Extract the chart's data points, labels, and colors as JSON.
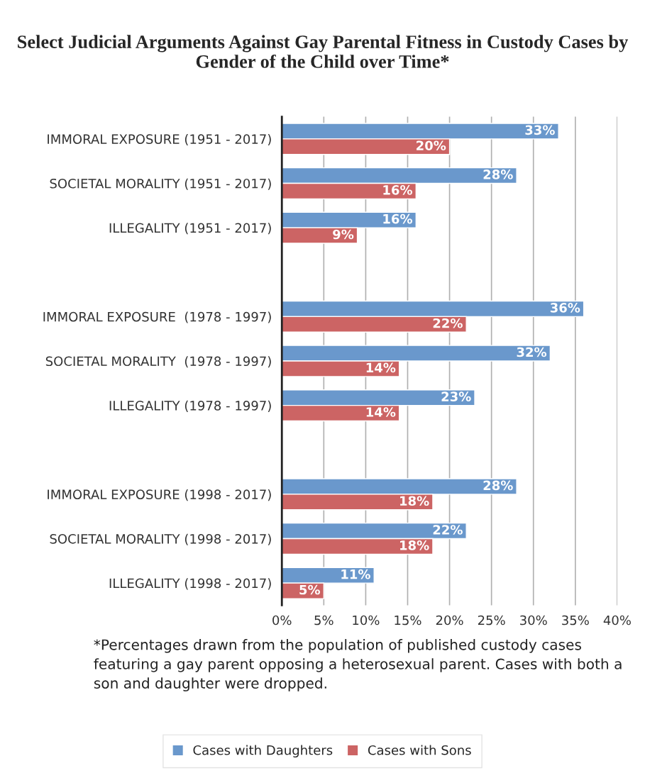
{
  "chart_data": {
    "type": "bar",
    "orientation": "horizontal",
    "title": "Select Judicial Arguments Against Gay Parental Fitness in Custody Cases by Gender of the Child over Time*",
    "categories": [
      "IMMORAL EXPOSURE (1951 - 2017)",
      "SOCIETAL MORALITY (1951 - 2017)",
      "ILLEGALITY (1951 - 2017)",
      null,
      "IMMORAL EXPOSURE  (1978 - 1997)",
      "SOCIETAL MORALITY  (1978 - 1997)",
      "ILLEGALITY (1978 - 1997)",
      null,
      "IMMORAL EXPOSURE (1998 - 2017)",
      "SOCIETAL MORALITY (1998 - 2017)",
      "ILLEGALITY (1998 - 2017)"
    ],
    "series": [
      {
        "name": "Cases with Daughters",
        "color": "#6a98cc",
        "values": [
          33,
          28,
          16,
          null,
          36,
          32,
          23,
          null,
          28,
          22,
          11
        ],
        "value_labels": [
          "33%",
          "28%",
          "16%",
          null,
          "36%",
          "32%",
          "23%",
          null,
          "28%",
          "22%",
          "11%"
        ]
      },
      {
        "name": "Cases with Sons",
        "color": "#cc6464",
        "values": [
          20,
          16,
          9,
          null,
          22,
          14,
          14,
          null,
          18,
          18,
          5
        ],
        "value_labels": [
          "20%",
          "16%",
          "9%",
          null,
          "22%",
          "14%",
          "14%",
          null,
          "18%",
          "18%",
          "5%"
        ]
      }
    ],
    "xlim": [
      0,
      40
    ],
    "xticks": [
      {
        "value": 0,
        "label": "0%"
      },
      {
        "value": 5,
        "label": "5%"
      },
      {
        "value": 10,
        "label": "10%"
      },
      {
        "value": 15,
        "label": "15%"
      },
      {
        "value": 20,
        "label": "20%"
      },
      {
        "value": 25,
        "label": "25%"
      },
      {
        "value": 30,
        "label": "30%"
      },
      {
        "value": 35,
        "label": "35%"
      },
      {
        "value": 40,
        "label": "40%"
      }
    ],
    "grid": "x",
    "legend": "bottom",
    "annotations": [
      "*Percentages drawn from the population of published custody cases featuring a gay parent opposing a heterosexual parent. Cases with both a son and daughter were dropped."
    ]
  }
}
